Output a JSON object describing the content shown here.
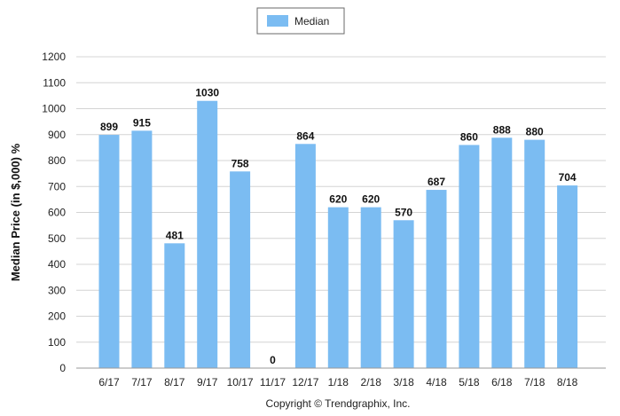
{
  "chart_data": {
    "type": "bar",
    "categories": [
      "6/17",
      "7/17",
      "8/17",
      "9/17",
      "10/17",
      "11/17",
      "12/17",
      "1/18",
      "2/18",
      "3/18",
      "4/18",
      "5/18",
      "6/18",
      "7/18",
      "8/18"
    ],
    "series": [
      {
        "name": "Median",
        "values": [
          899,
          915,
          481,
          1030,
          758,
          0,
          864,
          620,
          620,
          570,
          687,
          860,
          888,
          880,
          704
        ]
      }
    ],
    "data_labels": [
      "899",
      "915",
      "481",
      "1030",
      "758",
      "0",
      "864",
      "620",
      "620",
      "570",
      "687",
      "860",
      "888",
      "880",
      "704"
    ],
    "ylabel": "Median Price (in $,000) %",
    "ylim": [
      0,
      1200
    ],
    "yticks": [
      "0",
      "100",
      "200",
      "300",
      "400",
      "500",
      "600",
      "700",
      "800",
      "900",
      "1000",
      "1100",
      "1200"
    ],
    "grid": true,
    "legend_position": "top-center",
    "colors": {
      "bar": "#7bbcf2",
      "grid": "#d4d4d4",
      "axis": "#999999"
    }
  },
  "footer": {
    "copyright": "Copyright © Trendgraphix, Inc."
  }
}
